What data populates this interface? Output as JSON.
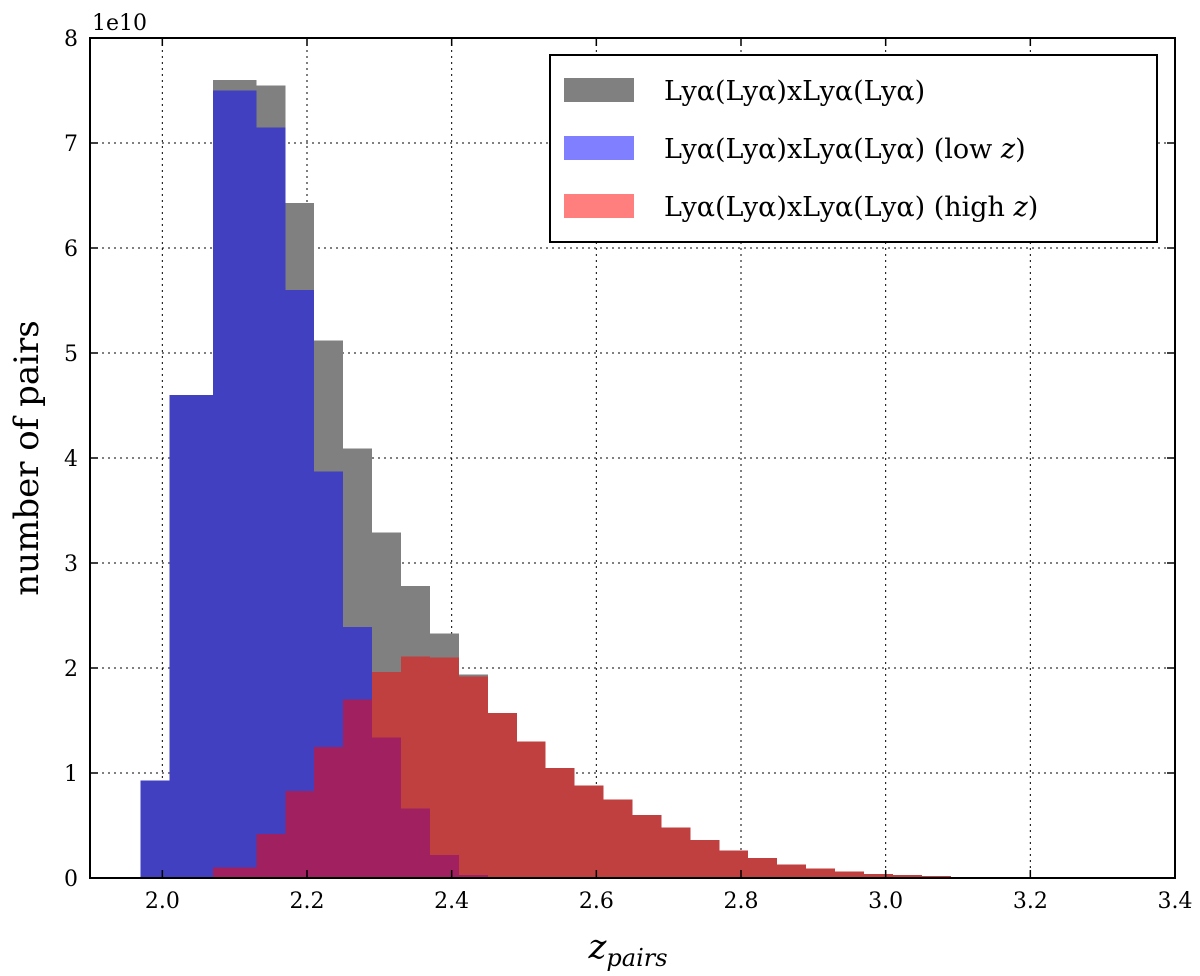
{
  "chart_data": {
    "type": "bar",
    "subtype": "overlapping-histogram",
    "title": "",
    "xlabel": "z_pairs",
    "xlabel_main": "z",
    "xlabel_sub": "pairs",
    "ylabel": "number of pairs",
    "y_offset_label": "1e10",
    "xlim": [
      1.9,
      3.4
    ],
    "ylim": [
      0,
      8
    ],
    "y_unit": 10000000000.0,
    "x_ticks": [
      "2.0",
      "2.2",
      "2.4",
      "2.6",
      "2.8",
      "3.0",
      "3.2",
      "3.4"
    ],
    "y_ticks": [
      "0",
      "1",
      "2",
      "3",
      "4",
      "5",
      "6",
      "7",
      "8"
    ],
    "grid": true,
    "legend_position": "top-right",
    "bin_edges": [
      1.97,
      2.01,
      2.07,
      2.13,
      2.17,
      2.21,
      2.25,
      2.29,
      2.33,
      2.37,
      2.41,
      2.45,
      2.49,
      2.53,
      2.57,
      2.61,
      2.65,
      2.69,
      2.73,
      2.77,
      2.81,
      2.85,
      2.89,
      2.93,
      2.97,
      3.01,
      3.05,
      3.09,
      3.13,
      3.17,
      3.21,
      3.25,
      3.29
    ],
    "series": [
      {
        "name": "Lyα(Lyα)xLyα(Lyα)",
        "color": "#808080",
        "opacity": 1.0,
        "values": [
          0.93,
          4.6,
          7.6,
          7.55,
          6.43,
          5.12,
          4.09,
          3.29,
          2.78,
          2.33,
          1.94,
          1.57,
          1.3,
          1.05,
          0.88,
          0.75,
          0.6,
          0.48,
          0.36,
          0.26,
          0.19,
          0.13,
          0.09,
          0.06,
          0.04,
          0.03,
          0.02,
          0.01,
          0.0,
          0.0,
          0.0,
          0.0
        ]
      },
      {
        "name": "Lyα(Lyα)xLyα(Lyα) (low z)",
        "color": "#0000ff",
        "opacity": 0.5,
        "values": [
          0.93,
          4.6,
          7.5,
          7.15,
          5.6,
          3.87,
          2.39,
          1.34,
          0.66,
          0.22,
          0.03,
          0.0,
          0.0,
          0.0,
          0.0,
          0.0,
          0.0,
          0.0,
          0.0,
          0.0,
          0.0,
          0.0,
          0.0,
          0.0,
          0.0,
          0.0,
          0.0,
          0.0,
          0.0,
          0.0,
          0.0,
          0.0
        ]
      },
      {
        "name": "Lyα(Lyα)xLyα(Lyα) (high z)",
        "color": "#ff0000",
        "opacity": 0.5,
        "values": [
          0.0,
          0.0,
          0.1,
          0.42,
          0.83,
          1.25,
          1.7,
          1.96,
          2.11,
          2.1,
          1.92,
          1.57,
          1.3,
          1.05,
          0.88,
          0.75,
          0.6,
          0.48,
          0.36,
          0.26,
          0.19,
          0.13,
          0.09,
          0.06,
          0.04,
          0.03,
          0.02,
          0.01,
          0.0,
          0.0,
          0.0,
          0.0
        ]
      }
    ]
  },
  "legend": {
    "series0": {
      "label_main": "Lyα(Lyα)xLyα(Lyα)",
      "suffix": ""
    },
    "series1": {
      "label_main": "Lyα(Lyα)xLyα(Lyα) (low ",
      "var": "z",
      "suffix": ")"
    },
    "series2": {
      "label_main": "Lyα(Lyα)xLyα(Lyα) (high ",
      "var": "z",
      "suffix": ")"
    }
  }
}
